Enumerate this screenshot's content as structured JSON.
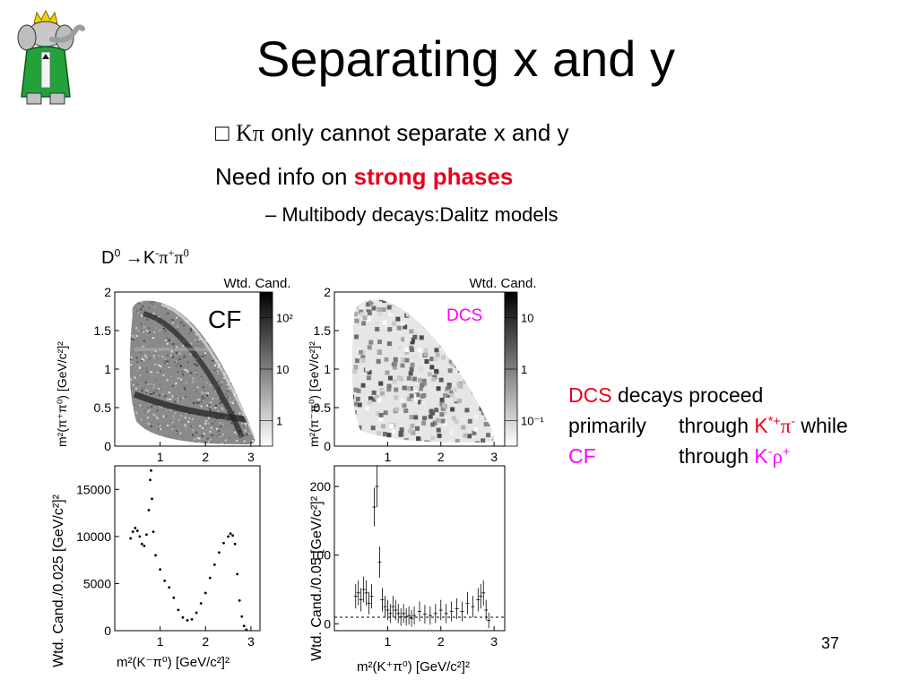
{
  "slide": {
    "title": "Separating x and y",
    "bullet1": {
      "math": "Kπ",
      "text": " only cannot separate x and y"
    },
    "bullet2": {
      "prefix": "Need info on ",
      "highlight": "strong phases"
    },
    "subbullet": "– Multibody decays:Dalitz models",
    "decay": {
      "d": "D",
      "d_sup": "0",
      "arrow": " →K",
      "k_sup": "-",
      "pi1": "π",
      "pi1_sup": "+",
      "pi2": "π",
      "pi2_sup": "0"
    },
    "side_text": {
      "line1_red": "DCS",
      "line1": " decays proceed",
      "line2_a": "primarily",
      "line2_b": "through ",
      "line2_red": "K",
      "line2_red_sup": "*+",
      "line2_red2": "π",
      "line2_red2_sup": "-",
      "line2_c": " while",
      "line3_magenta": "CF",
      "line3_b": "through ",
      "line3_magenta2": "K",
      "line3_magenta2_sup": "-",
      "line3_magenta3": "ρ",
      "line3_magenta3_sup": "+"
    },
    "slide_number": "37",
    "logo": "elephant-king-logo",
    "colors": {
      "red": "#e8001c",
      "magenta": "#ff00ff"
    }
  },
  "chart_data": [
    {
      "type": "heatmap",
      "panel": "CF dalitz",
      "label": "CF",
      "ylabel": "m²(π⁺π⁰) [GeV/c²]²",
      "xticks": [
        "1",
        "2",
        "3"
      ],
      "yticks": [
        "0",
        "0.5",
        "1",
        "1.5",
        "2"
      ],
      "xlim": [
        0,
        3.2
      ],
      "ylim": [
        0,
        2
      ],
      "colorbar": {
        "title": "Wtd. Cand.",
        "ticks": [
          "1",
          "10",
          "10²"
        ]
      }
    },
    {
      "type": "heatmap",
      "panel": "DCS dalitz",
      "label": "DCS",
      "ylabel": "m²(π⁻π⁰) [GeV/c²]²",
      "xticks": [
        "1",
        "2",
        "3"
      ],
      "yticks": [
        "0",
        "0.5",
        "1",
        "1.5",
        "2"
      ],
      "xlim": [
        0,
        3.2
      ],
      "ylim": [
        0,
        2
      ],
      "colorbar": {
        "title": "Wtd. Cand.",
        "ticks": [
          "10⁻¹",
          "1",
          "10"
        ]
      }
    },
    {
      "type": "scatter",
      "panel": "CF projection",
      "xlabel": "m²(K⁻π⁰) [GeV/c²]²",
      "ylabel": "Wtd. Cand./0.025 [GeV/c²]²",
      "xticks": [
        "1",
        "2",
        "3"
      ],
      "yticks": [
        "0",
        "5000",
        "10000",
        "15000"
      ],
      "xlim": [
        0,
        3.2
      ],
      "ylim": [
        0,
        17500
      ],
      "x": [
        0.35,
        0.4,
        0.45,
        0.5,
        0.55,
        0.6,
        0.65,
        0.7,
        0.75,
        0.78,
        0.8,
        0.82,
        0.85,
        0.9,
        1.0,
        1.1,
        1.2,
        1.3,
        1.4,
        1.5,
        1.6,
        1.7,
        1.8,
        1.9,
        2.0,
        2.1,
        2.2,
        2.3,
        2.4,
        2.5,
        2.55,
        2.6,
        2.65,
        2.7,
        2.75,
        2.8,
        2.85,
        2.9
      ],
      "y": [
        9800,
        10500,
        10900,
        10600,
        10000,
        9200,
        9000,
        10200,
        12800,
        16000,
        17000,
        14000,
        10500,
        8000,
        6500,
        5300,
        4600,
        3500,
        2200,
        1400,
        1100,
        1200,
        1900,
        2900,
        4000,
        5600,
        7000,
        8300,
        9300,
        10000,
        10300,
        10100,
        9200,
        6000,
        3200,
        1500,
        500,
        100
      ]
    },
    {
      "type": "scatter",
      "panel": "DCS projection",
      "xlabel": "m²(K⁺π⁰) [GeV/c²]²",
      "ylabel": "Wtd. Cand./0.05 [GeV/c²]²",
      "xticks": [
        "1",
        "2",
        "3"
      ],
      "yticks": [
        "0",
        "100",
        "200"
      ],
      "xlim": [
        0,
        3.2
      ],
      "ylim": [
        -10,
        230
      ],
      "x": [
        0.4,
        0.45,
        0.5,
        0.55,
        0.6,
        0.65,
        0.7,
        0.75,
        0.8,
        0.85,
        0.9,
        0.95,
        1.0,
        1.05,
        1.1,
        1.15,
        1.2,
        1.25,
        1.3,
        1.35,
        1.4,
        1.45,
        1.5,
        1.6,
        1.7,
        1.8,
        1.9,
        2.0,
        2.1,
        2.2,
        2.3,
        2.4,
        2.5,
        2.6,
        2.7,
        2.75,
        2.8,
        2.85,
        2.9
      ],
      "y": [
        40,
        45,
        35,
        50,
        45,
        30,
        40,
        170,
        200,
        90,
        35,
        25,
        20,
        15,
        25,
        20,
        15,
        10,
        15,
        10,
        12,
        8,
        12,
        18,
        14,
        12,
        15,
        20,
        15,
        18,
        22,
        18,
        30,
        25,
        35,
        40,
        45,
        20,
        5
      ]
    }
  ]
}
